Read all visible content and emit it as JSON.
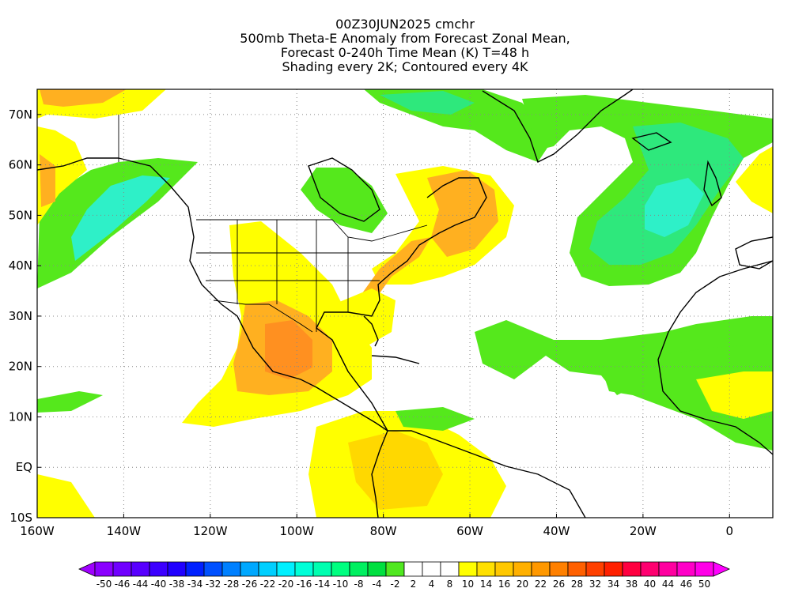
{
  "title": {
    "line1": "00Z30JUN2025 cmchr",
    "line2": "500mb Theta-E Anomaly from Forecast Zonal Mean,",
    "line3": "Forecast 0-240h Time Mean (K) T=48 h",
    "line4": "Shading every 2K; Contoured every 4K"
  },
  "map": {
    "lon_range": [
      -160,
      10
    ],
    "lat_range": [
      -10,
      75
    ],
    "lat_ticks": [
      {
        "value": 70,
        "label": "70N"
      },
      {
        "value": 60,
        "label": "60N"
      },
      {
        "value": 50,
        "label": "50N"
      },
      {
        "value": 40,
        "label": "40N"
      },
      {
        "value": 30,
        "label": "30N"
      },
      {
        "value": 20,
        "label": "20N"
      },
      {
        "value": 10,
        "label": "10N"
      },
      {
        "value": 0,
        "label": "EQ"
      },
      {
        "value": -10,
        "label": "10S"
      }
    ],
    "lon_ticks": [
      {
        "value": -160,
        "label": "160W"
      },
      {
        "value": -140,
        "label": "140W"
      },
      {
        "value": -120,
        "label": "120W"
      },
      {
        "value": -100,
        "label": "100W"
      },
      {
        "value": -80,
        "label": "80W"
      },
      {
        "value": -60,
        "label": "60W"
      },
      {
        "value": -40,
        "label": "40W"
      },
      {
        "value": -20,
        "label": "20W"
      },
      {
        "value": 0,
        "label": "0"
      }
    ],
    "grid": "dotted"
  },
  "colorbar": {
    "colors": [
      "#8a00ff",
      "#7000ff",
      "#5800ff",
      "#3c00ff",
      "#2000ff",
      "#0020ff",
      "#0050ff",
      "#0080ff",
      "#00a8ff",
      "#00cfff",
      "#00f0ff",
      "#00ffd8",
      "#00ffb0",
      "#00ff80",
      "#00f060",
      "#00e040",
      "#50e820",
      "#ffffff",
      "#ffffff",
      "#ffffff",
      "#ffff00",
      "#ffe000",
      "#ffc800",
      "#ffb000",
      "#ff9800",
      "#ff8000",
      "#ff6000",
      "#ff4000",
      "#ff2000",
      "#ff0040",
      "#ff0070",
      "#ff00a0",
      "#ff00c8",
      "#ff00e8"
    ],
    "labels": [
      "-50",
      "-46",
      "-44",
      "-40",
      "-38",
      "-34",
      "-32",
      "-28",
      "-26",
      "-22",
      "-20",
      "-16",
      "-14",
      "-10",
      "-8",
      "-4",
      "-2",
      "2",
      "4",
      "8",
      "10",
      "14",
      "16",
      "20",
      "22",
      "26",
      "28",
      "32",
      "34",
      "38",
      "40",
      "44",
      "46",
      "50"
    ]
  },
  "shading_colors": {
    "green": "#55e81c",
    "green_light": "#2ee87c",
    "cyan": "#2ef0c8",
    "yellow": "#ffff00",
    "yellow_orange": "#ffd800",
    "orange": "#ffb020",
    "dark_orange": "#ff9020"
  }
}
